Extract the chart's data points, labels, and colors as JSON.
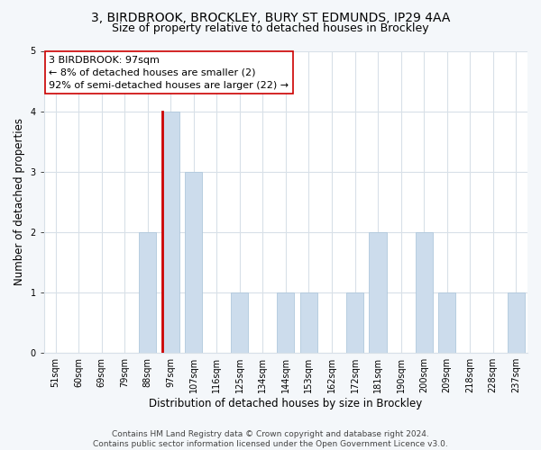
{
  "title_line1": "3, BIRDBROOK, BROCKLEY, BURY ST EDMUNDS, IP29 4AA",
  "title_line2": "Size of property relative to detached houses in Brockley",
  "xlabel": "Distribution of detached houses by size in Brockley",
  "ylabel": "Number of detached properties",
  "categories": [
    "51sqm",
    "60sqm",
    "69sqm",
    "79sqm",
    "88sqm",
    "97sqm",
    "107sqm",
    "116sqm",
    "125sqm",
    "134sqm",
    "144sqm",
    "153sqm",
    "162sqm",
    "172sqm",
    "181sqm",
    "190sqm",
    "200sqm",
    "209sqm",
    "218sqm",
    "228sqm",
    "237sqm"
  ],
  "values": [
    0,
    0,
    0,
    0,
    2,
    4,
    3,
    0,
    1,
    0,
    1,
    1,
    0,
    1,
    2,
    0,
    2,
    1,
    0,
    0,
    1
  ],
  "bar_color": "#ccdcec",
  "bar_edge_color": "#b0c8dc",
  "highlight_bar_index": 5,
  "highlight_left_edge_color": "#cc0000",
  "ylim": [
    0,
    5
  ],
  "yticks": [
    0,
    1,
    2,
    3,
    4,
    5
  ],
  "annotation_text_line1": "3 BIRDBROOK: 97sqm",
  "annotation_text_line2": "← 8% of detached houses are smaller (2)",
  "annotation_text_line3": "92% of semi-detached houses are larger (22) →",
  "annotation_box_edge_color": "#cc0000",
  "footer_text": "Contains HM Land Registry data © Crown copyright and database right 2024.\nContains public sector information licensed under the Open Government Licence v3.0.",
  "background_color": "#f4f7fa",
  "plot_background_color": "#ffffff",
  "grid_color": "#d8e0e8",
  "title_fontsize": 10,
  "subtitle_fontsize": 9,
  "axis_label_fontsize": 8.5,
  "tick_fontsize": 7,
  "annotation_fontsize": 8
}
